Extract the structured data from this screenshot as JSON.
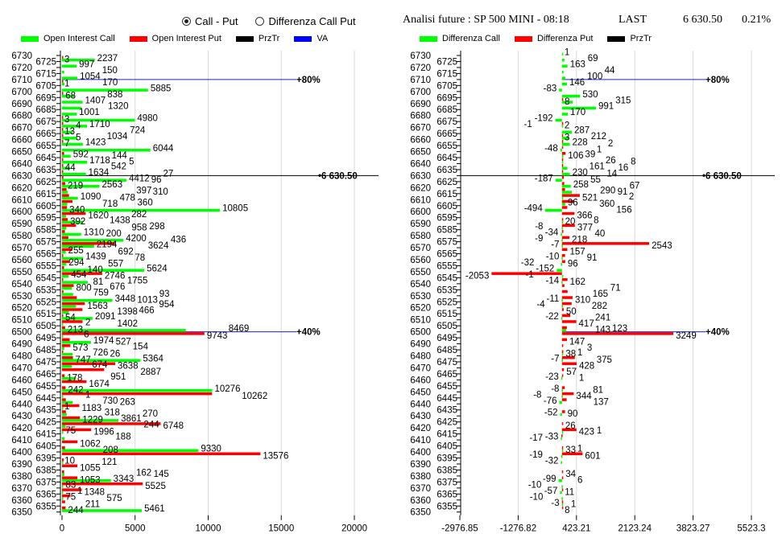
{
  "header": {
    "radio_options": [
      {
        "label": "Call - Put",
        "selected": true
      },
      {
        "label": "Differenza Call Put",
        "selected": false
      }
    ],
    "title": "Analisi future : SP 500 MINI - 08:18",
    "last_label": "LAST",
    "last_value": "6 630.50",
    "change": "0.21%"
  },
  "left_legend": [
    {
      "label": "Open Interest Call",
      "color": "#00ff00"
    },
    {
      "label": "Open Interest Put",
      "color": "#ff0000"
    },
    {
      "label": "PrzTr",
      "color": "#000000"
    },
    {
      "label": "VA",
      "color": "#0000ff"
    }
  ],
  "right_legend": [
    {
      "label": "Differenza Call",
      "color": "#00ff00"
    },
    {
      "label": "Differenza Put",
      "color": "#ff0000"
    },
    {
      "label": "PrzTr",
      "color": "#000000"
    }
  ],
  "chart_data": [
    {
      "type": "bar",
      "orientation": "horizontal",
      "categories": [
        6730,
        6725,
        6720,
        6715,
        6710,
        6705,
        6700,
        6695,
        6690,
        6685,
        6680,
        6675,
        6670,
        6665,
        6660,
        6655,
        6650,
        6645,
        6640,
        6635,
        6630,
        6625,
        6620,
        6615,
        6610,
        6605,
        6600,
        6595,
        6590,
        6585,
        6580,
        6575,
        6570,
        6565,
        6560,
        6555,
        6550,
        6545,
        6540,
        6535,
        6530,
        6525,
        6520,
        6515,
        6510,
        6505,
        6500,
        6495,
        6490,
        6485,
        6480,
        6475,
        6470,
        6465,
        6460,
        6455,
        6450,
        6445,
        6440,
        6435,
        6430,
        6425,
        6420,
        6415,
        6410,
        6405,
        6400,
        6395,
        6390,
        6385,
        6380,
        6375,
        6370,
        6365,
        6360,
        6355,
        6350
      ],
      "series": [
        {
          "name": "Open Interest Call",
          "color": "#00ff00",
          "values": [
            null,
            2237,
            997,
            150,
            1054,
            170,
            5885,
            838,
            1407,
            1320,
            1001,
            4980,
            1710,
            724,
            1034,
            1423,
            6044,
            592,
            1718,
            542,
            1634,
            4412,
            2563,
            397,
            1090,
            360,
            10805,
            282,
            1438,
            298,
            1310,
            4200,
            2194,
            255,
            1439,
            294,
            5624,
            454,
            1755,
            676,
            759,
            3448,
            954,
            466,
            2091,
            2,
            8469,
            6,
            1974,
            154,
            726,
            5364,
            674,
            null,
            951,
            null,
            10276,
            1,
            730,
            1,
            318,
            3861,
            244,
            75,
            188,
            null,
            9330,
            null,
            10,
            null,
            162,
            3343,
            83,
            1,
            75,
            null,
            5461
          ]
        },
        {
          "name": "Open Interest Put",
          "color": "#ff0000",
          "values": [
            3,
            null,
            null,
            null,
            1,
            null,
            68,
            null,
            null,
            null,
            3,
            4,
            13,
            5,
            7,
            null,
            144,
            5,
            44,
            27,
            96,
            219,
            310,
            478,
            718,
            340,
            1620,
            392,
            958,
            200,
            436,
            3624,
            692,
            78,
            557,
            140,
            2746,
            81,
            800,
            93,
            1013,
            1563,
            1398,
            54,
            1402,
            213,
            9743,
            527,
            573,
            26,
            747,
            3638,
            2887,
            178,
            1674,
            242,
            10262,
            263,
            1183,
            270,
            1229,
            6748,
            1996,
            null,
            1062,
            208,
            13576,
            121,
            1055,
            145,
            1053,
            5525,
            1348,
            575,
            211,
            244,
            null
          ]
        }
      ],
      "xlim": [
        0,
        20000
      ],
      "xticks": [
        "0",
        "5000",
        "10000",
        "15000",
        "20000"
      ],
      "grid": true,
      "przTr": {
        "strike": 6630,
        "label": "6 630.50"
      },
      "va_lines": [
        {
          "strike": 6710,
          "label": "+80%"
        },
        {
          "strike": 6500,
          "label": "+40%"
        }
      ]
    },
    {
      "type": "bar",
      "orientation": "horizontal",
      "categories": [
        6730,
        6725,
        6720,
        6715,
        6710,
        6705,
        6700,
        6695,
        6690,
        6685,
        6680,
        6675,
        6670,
        6665,
        6660,
        6655,
        6650,
        6645,
        6640,
        6635,
        6630,
        6625,
        6620,
        6615,
        6610,
        6605,
        6600,
        6595,
        6590,
        6585,
        6580,
        6575,
        6570,
        6565,
        6560,
        6555,
        6550,
        6545,
        6540,
        6535,
        6530,
        6525,
        6520,
        6515,
        6510,
        6505,
        6500,
        6495,
        6490,
        6485,
        6480,
        6475,
        6470,
        6465,
        6460,
        6455,
        6450,
        6445,
        6440,
        6435,
        6430,
        6425,
        6420,
        6415,
        6410,
        6405,
        6400,
        6395,
        6390,
        6385,
        6380,
        6375,
        6370,
        6365,
        6360,
        6355,
        6350
      ],
      "series": [
        {
          "name": "Differenza Call",
          "color": "#00ff00",
          "values": [
            1,
            69,
            163,
            44,
            100,
            146,
            -83,
            530,
            315,
            991,
            170,
            -192,
            -1,
            287,
            212,
            228,
            -48,
            39,
            26,
            161,
            230,
            -187,
            258,
            290,
            2,
            96,
            -494,
            null,
            8,
            -8,
            -34,
            -9,
            -7,
            null,
            -10,
            -32,
            -152,
            -1,
            -14,
            null,
            null,
            -11,
            -4,
            null,
            -22,
            null,
            123,
            null,
            null,
            null,
            1,
            -7,
            null,
            null,
            -23,
            null,
            -8,
            -8,
            -76,
            null,
            -52,
            null,
            null,
            1,
            -33,
            null,
            1,
            -19,
            -32,
            null,
            null,
            -99,
            -10,
            -57,
            -10,
            -3,
            null
          ]
        },
        {
          "name": "Differenza Put",
          "color": "#ff0000",
          "values": [
            null,
            null,
            null,
            null,
            null,
            null,
            null,
            8,
            null,
            null,
            null,
            2,
            null,
            3,
            2,
            1,
            106,
            8,
            16,
            14,
            55,
            67,
            91,
            521,
            360,
            156,
            366,
            20,
            377,
            40,
            218,
            2543,
            157,
            91,
            96,
            null,
            -2053,
            162,
            71,
            165,
            310,
            282,
            50,
            241,
            417,
            143,
            3249,
            147,
            3,
            38,
            375,
            428,
            57,
            1,
            null,
            81,
            344,
            137,
            null,
            90,
            null,
            26,
            423,
            -17,
            null,
            33,
            601,
            null,
            null,
            34,
            6,
            null,
            11,
            null,
            1,
            8,
            null
          ]
        }
      ],
      "xlim": [
        -2976.85,
        5523.3
      ],
      "xticks": [
        "-2976.85",
        "-1276.82",
        "423.21",
        "2123.24",
        "3823.27",
        "5523.3"
      ],
      "grid": true,
      "przTr": {
        "strike": 6630,
        "label": "6 630.50"
      },
      "va_lines": [
        {
          "strike": 6710,
          "label": "+80%"
        },
        {
          "strike": 6500,
          "label": "+40%"
        }
      ]
    }
  ]
}
